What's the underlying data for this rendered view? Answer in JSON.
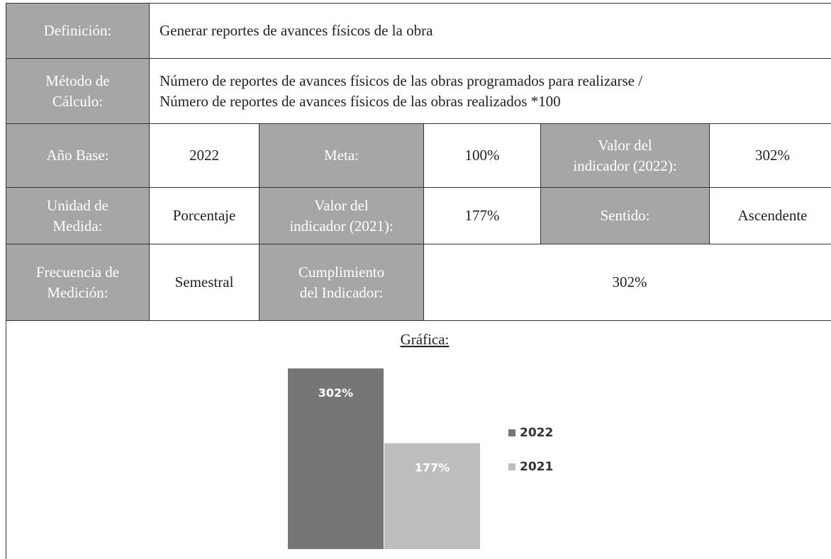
{
  "table": {
    "rows": [
      [
        "Definición:",
        "Generar reportes de avances físicos de la obra"
      ],
      [
        "Método de\nCálculo:",
        "Número de reportes de avances físicos de las obras programados para realizarse /\nNúmero de reportes de avances físicos de las obras realizados *100"
      ],
      [
        "Año Base:",
        "2022",
        "Meta:",
        "100%",
        "Valor del\nindicador (2022):",
        "302%"
      ],
      [
        "Unidad de\nMedida:",
        "Porcentaje",
        "Valor del\nindicador (2021):",
        "177%",
        "Sentido:",
        "Ascendente"
      ],
      [
        "Frecuencia de\nMedición:",
        "Semestral",
        "Cumplimiento\ndel Indicador:",
        "302%"
      ]
    ]
  },
  "chart_data": {
    "type": "bar",
    "title": "Gráfica:",
    "series": [
      {
        "name": "2022",
        "color": "#767676",
        "values": [
          302
        ],
        "value_labels": [
          "302%"
        ]
      },
      {
        "name": "2021",
        "color": "#bdbdbd",
        "values": [
          177
        ],
        "value_labels": [
          "177%"
        ]
      }
    ]
  }
}
